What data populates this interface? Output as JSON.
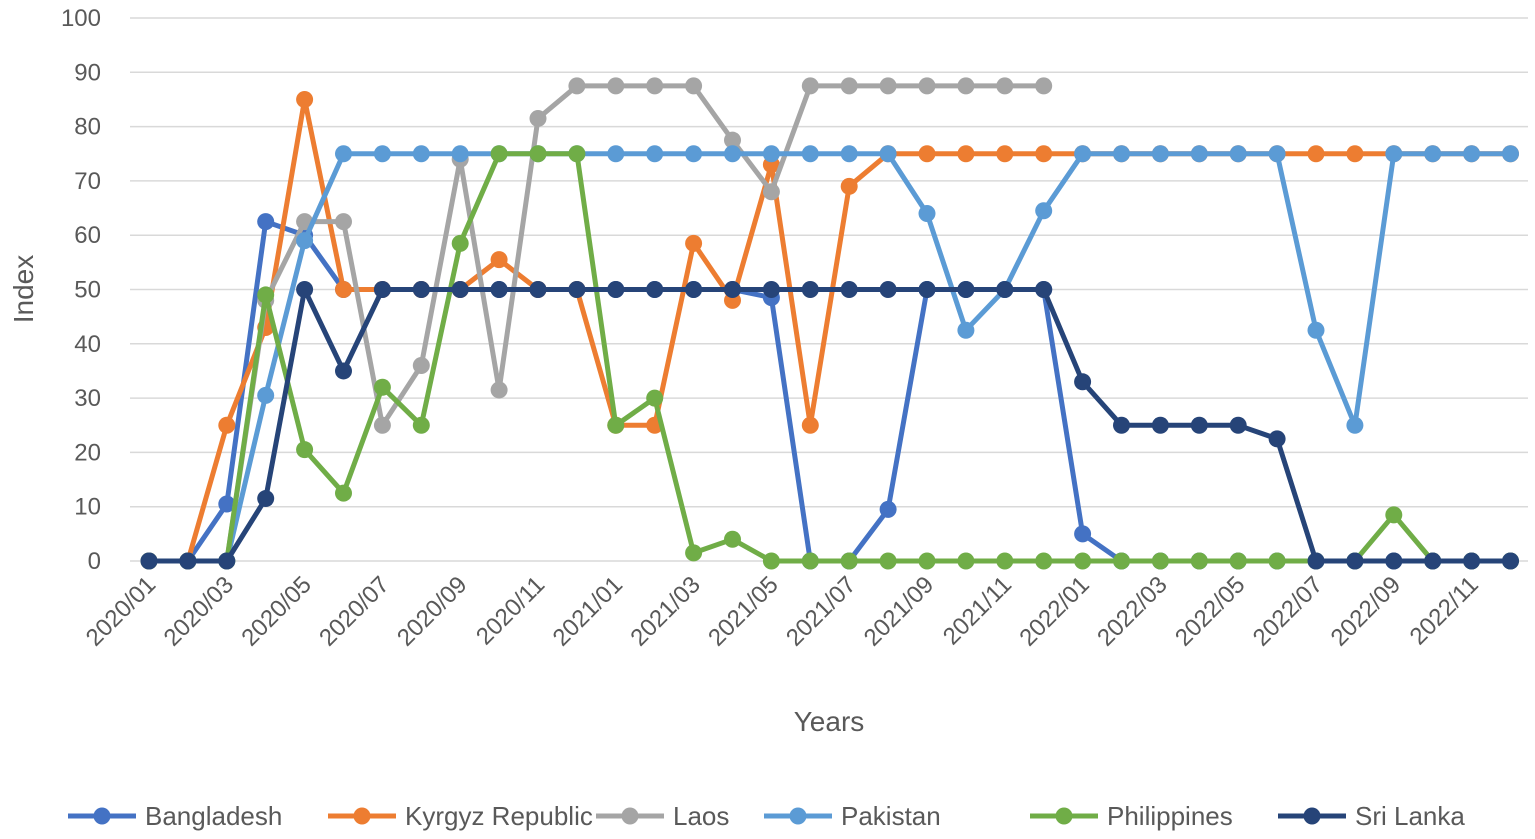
{
  "chart_data": {
    "type": "line",
    "title": "",
    "xlabel": "Years",
    "ylabel": "Index",
    "ylim": [
      0,
      100
    ],
    "yticks": [
      0,
      10,
      20,
      30,
      40,
      50,
      60,
      70,
      80,
      90,
      100
    ],
    "grid": "horizontal",
    "legend_position": "bottom",
    "x": [
      "2020/01",
      "2020/02",
      "2020/03",
      "2020/04",
      "2020/05",
      "2020/06",
      "2020/07",
      "2020/08",
      "2020/09",
      "2020/10",
      "2020/11",
      "2020/12",
      "2021/01",
      "2021/02",
      "2021/03",
      "2021/04",
      "2021/05",
      "2021/06",
      "2021/07",
      "2021/08",
      "2021/09",
      "2021/10",
      "2021/11",
      "2021/12",
      "2022/01",
      "2022/02",
      "2022/03",
      "2022/04",
      "2022/05",
      "2022/06",
      "2022/07",
      "2022/08",
      "2022/09",
      "2022/10",
      "2022/11",
      "2022/12"
    ],
    "x_tick_labels": [
      "2020/01",
      "2020/03",
      "2020/05",
      "2020/07",
      "2020/09",
      "2020/11",
      "2021/01",
      "2021/03",
      "2021/05",
      "2021/07",
      "2021/09",
      "2021/11",
      "2022/01",
      "2022/03",
      "2022/05",
      "2022/07",
      "2022/09",
      "2022/11"
    ],
    "series": [
      {
        "name": "Bangladesh",
        "color": "#4472c4",
        "values": [
          0,
          0,
          10.5,
          62.5,
          60,
          50,
          50,
          50,
          50,
          50,
          50,
          50,
          50,
          50,
          50,
          50,
          48.5,
          0,
          0,
          9.5,
          50,
          50,
          50,
          50,
          5,
          0,
          0,
          0,
          0,
          0,
          0,
          0,
          0,
          0,
          0,
          0
        ]
      },
      {
        "name": "Kyrgyz Republic",
        "color": "#ed7d31",
        "values": [
          0,
          0,
          25,
          43,
          85,
          50,
          50,
          50,
          50,
          55.5,
          50,
          50,
          25,
          25,
          58.5,
          48,
          73,
          25,
          69,
          75,
          75,
          75,
          75,
          75,
          75,
          75,
          75,
          75,
          75,
          75,
          75,
          75,
          75,
          75,
          75,
          75
        ]
      },
      {
        "name": "Laos",
        "color": "#a5a5a5",
        "values": [
          0,
          0,
          0,
          48,
          62.5,
          62.5,
          25,
          36,
          74,
          31.5,
          81.5,
          87.5,
          87.5,
          87.5,
          87.5,
          77.5,
          68,
          87.5,
          87.5,
          87.5,
          87.5,
          87.5,
          87.5,
          87.5,
          null,
          null,
          null,
          null,
          null,
          null,
          null,
          null,
          null,
          null,
          null,
          null
        ]
      },
      {
        "name": "Pakistan",
        "color": "#5b9bd5",
        "values": [
          0,
          0,
          0,
          30.5,
          59,
          75,
          75,
          75,
          75,
          75,
          75,
          75,
          75,
          75,
          75,
          75,
          75,
          75,
          75,
          75,
          64,
          42.5,
          50,
          64.5,
          75,
          75,
          75,
          75,
          75,
          75,
          42.5,
          25,
          75,
          75,
          75,
          75
        ]
      },
      {
        "name": "Philippines",
        "color": "#70ad47",
        "values": [
          0,
          0,
          0,
          49,
          20.5,
          12.5,
          32,
          25,
          58.5,
          75,
          75,
          75,
          25,
          30,
          1.5,
          4,
          0,
          0,
          0,
          0,
          0,
          0,
          0,
          0,
          0,
          0,
          0,
          0,
          0,
          0,
          0,
          0,
          8.5,
          0,
          0,
          0
        ]
      },
      {
        "name": "Sri Lanka",
        "color": "#264478",
        "values": [
          0,
          0,
          0,
          11.5,
          50,
          35,
          50,
          50,
          50,
          50,
          50,
          50,
          50,
          50,
          50,
          50,
          50,
          50,
          50,
          50,
          50,
          50,
          50,
          50,
          33,
          25,
          25,
          25,
          25,
          22.5,
          0,
          0,
          0,
          0,
          0,
          0
        ]
      }
    ]
  }
}
